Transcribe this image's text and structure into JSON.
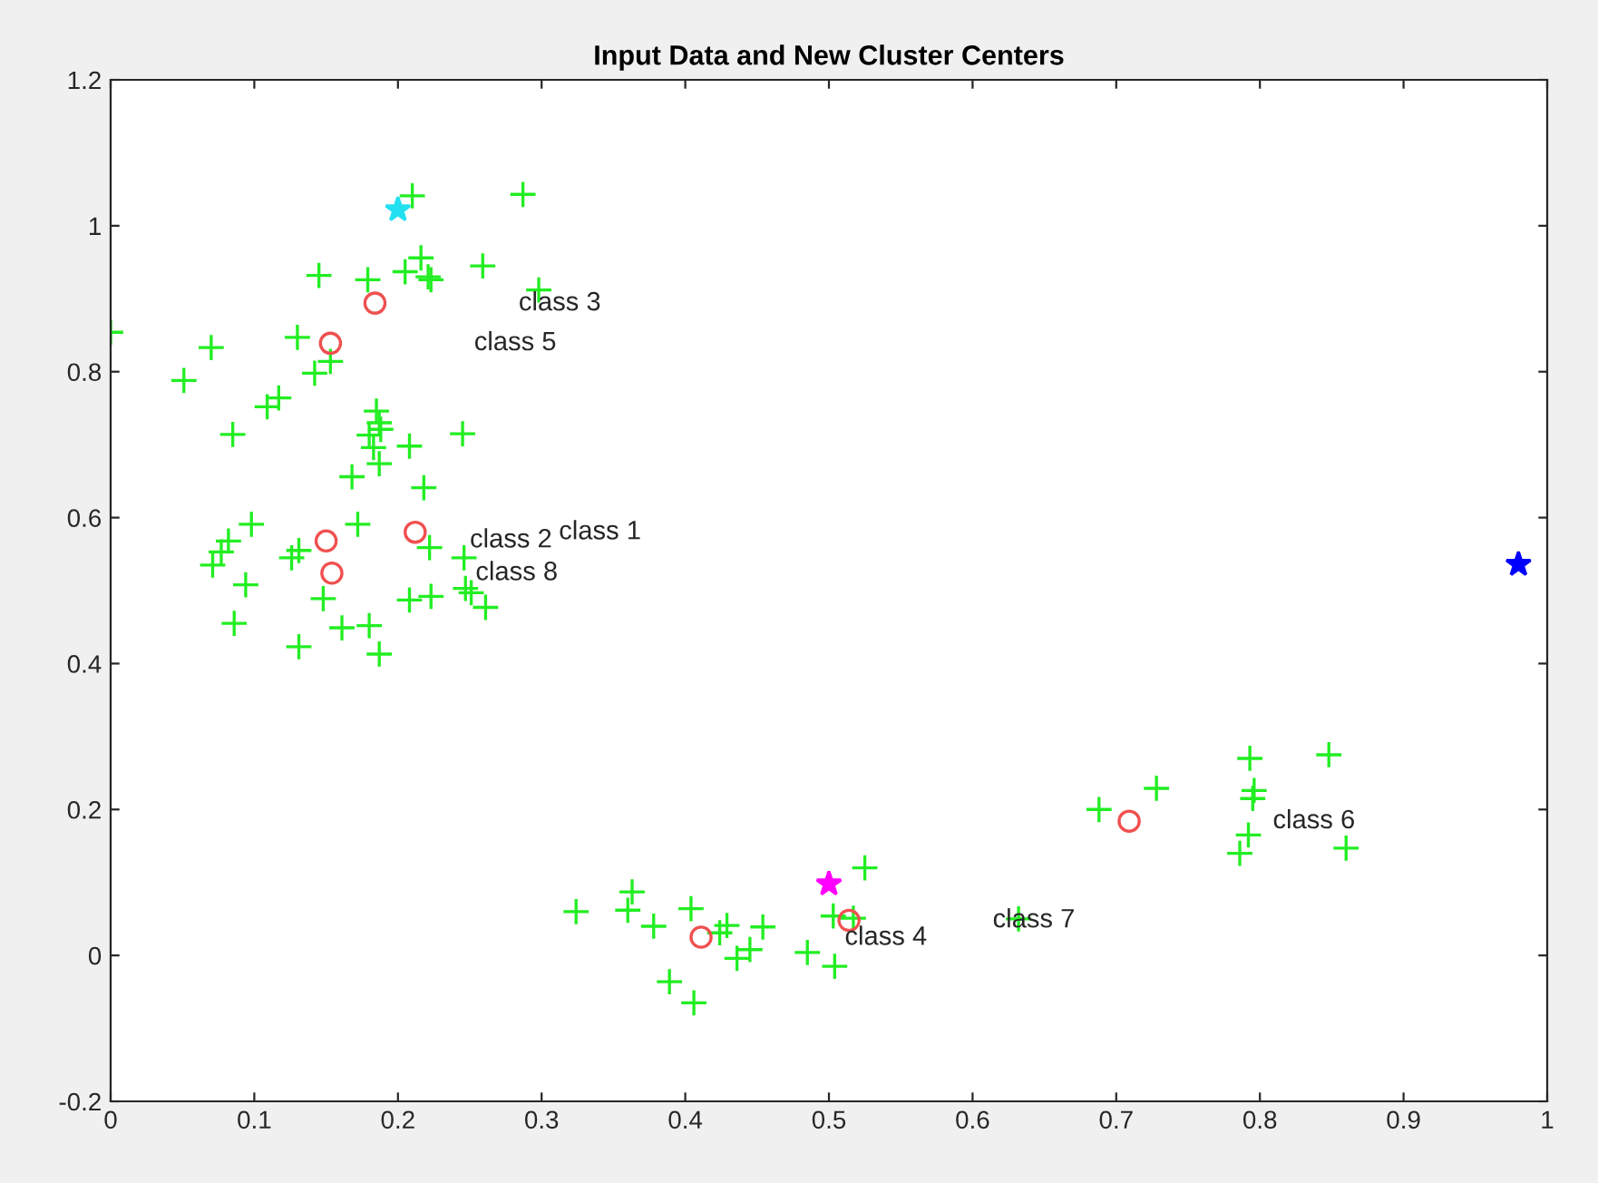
{
  "chart_data": {
    "type": "scatter",
    "title": "Input Data and New Cluster Centers",
    "xlim": [
      0,
      1
    ],
    "ylim": [
      -0.2,
      1.2
    ],
    "xticks": [
      0,
      0.1,
      0.2,
      0.3,
      0.4,
      0.5,
      0.6,
      0.7,
      0.8,
      0.9,
      1
    ],
    "yticks": [
      -0.2,
      0,
      0.2,
      0.4,
      0.6,
      0.8,
      1,
      1.2
    ],
    "grid": false,
    "legend": false,
    "series": [
      {
        "marker": "cross",
        "color": "#22ee22",
        "x": [
          0.21,
          0.287,
          0.216,
          0.145,
          0.179,
          0.205,
          0.221,
          0.223,
          0.259,
          0.298,
          0.0,
          0.07,
          0.13,
          0.051,
          0.142,
          0.153,
          0.109,
          0.117,
          0.085,
          0.185,
          0.187,
          0.18,
          0.188,
          0.183,
          0.208,
          0.245,
          0.187,
          0.168,
          0.218,
          0.082,
          0.098,
          0.077,
          0.071,
          0.094,
          0.086,
          0.131,
          0.126,
          0.172,
          0.222,
          0.246,
          0.148,
          0.161,
          0.18,
          0.131,
          0.187,
          0.208,
          0.223,
          0.247,
          0.251,
          0.261,
          0.324,
          0.363,
          0.36,
          0.378,
          0.404,
          0.424,
          0.429,
          0.436,
          0.445,
          0.454,
          0.389,
          0.406,
          0.485,
          0.503,
          0.504,
          0.525,
          0.517,
          0.632,
          0.688,
          0.728,
          0.793,
          0.848,
          0.796,
          0.795,
          0.792,
          0.786,
          0.86
        ],
        "values": [
          1.041,
          1.043,
          0.956,
          0.932,
          0.926,
          0.937,
          0.93,
          0.926,
          0.945,
          0.912,
          0.854,
          0.833,
          0.847,
          0.788,
          0.798,
          0.814,
          0.752,
          0.764,
          0.714,
          0.746,
          0.73,
          0.713,
          0.721,
          0.696,
          0.698,
          0.715,
          0.674,
          0.656,
          0.641,
          0.568,
          0.591,
          0.553,
          0.535,
          0.508,
          0.455,
          0.555,
          0.545,
          0.591,
          0.559,
          0.545,
          0.489,
          0.449,
          0.452,
          0.423,
          0.413,
          0.487,
          0.492,
          0.503,
          0.497,
          0.477,
          0.06,
          0.087,
          0.062,
          0.04,
          0.064,
          0.031,
          0.041,
          -0.004,
          0.008,
          0.039,
          -0.036,
          -0.065,
          0.004,
          0.054,
          -0.015,
          0.12,
          0.051,
          0.05,
          0.2,
          0.229,
          0.27,
          0.275,
          0.226,
          0.215,
          0.165,
          0.14,
          0.147
        ]
      },
      {
        "marker": "circle",
        "color": "#f05050",
        "x": [
          0.184,
          0.153,
          0.15,
          0.154,
          0.212,
          0.411,
          0.514,
          0.709
        ],
        "values": [
          0.894,
          0.839,
          0.568,
          0.524,
          0.58,
          0.025,
          0.048,
          0.184
        ]
      },
      {
        "marker": "star",
        "colors": [
          "#22e0f0",
          "#ff00ff",
          "#0000ff"
        ],
        "x": [
          0.2,
          0.5,
          0.98
        ],
        "values": [
          1.022,
          0.098,
          0.536
        ]
      }
    ],
    "annotations": [
      "class 3",
      "class 5",
      "class 2",
      "class 8",
      "class 1",
      "class 4",
      "class 7",
      "class 6"
    ]
  }
}
